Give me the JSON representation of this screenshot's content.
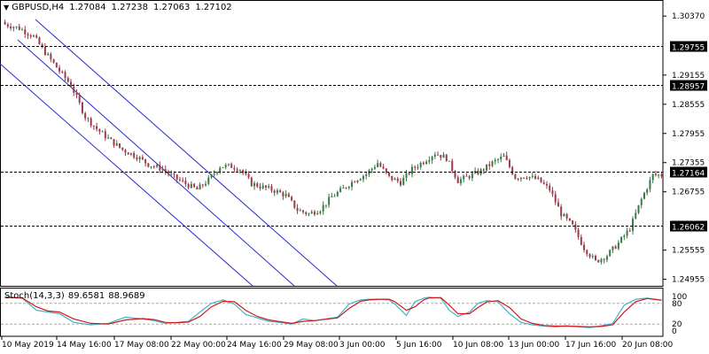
{
  "header": {
    "symbol": "GBPUSD,H4",
    "open": "1.27084",
    "high": "1.27238",
    "low": "1.27063",
    "close": "1.27102"
  },
  "stochastic": {
    "label": "Stoch(14,3,3)",
    "main": "89.6581",
    "signal": "88.9689",
    "levels": [
      "100",
      "80",
      "20",
      "0"
    ]
  },
  "colors": {
    "bull": "#3a7a45",
    "bear": "#9c3b4c",
    "channel": "#2a2acc",
    "stoch_main": "#40b4c8",
    "stoch_signal": "#d01818"
  },
  "chart_data": [
    {
      "type": "candlestick",
      "title": "GBPUSD,H4",
      "y_ticks": [
        "1.30370",
        "1.29155",
        "1.28555",
        "1.27955",
        "1.27355",
        "1.26755",
        "1.25555",
        "1.24955"
      ],
      "horizontal_levels": [
        "1.29755",
        "1.28957",
        "1.27164",
        "1.26062"
      ],
      "x_ticks": [
        "10 May 2019",
        "14 May 16:00",
        "17 May 08:00",
        "22 May 00:00",
        "24 May 16:00",
        "29 May 08:00",
        "3 Jun 00:00",
        "5 Jun 16:00",
        "10 Jun 08:00",
        "13 Jun 00:00",
        "17 Jun 16:00",
        "20 Jun 08:00"
      ],
      "ylim": [
        1.2482,
        1.307
      ],
      "grid": false,
      "trend_channel": "descending, 3 parallel lines",
      "close_path": [
        [
          0,
          1.302
        ],
        [
          5,
          1.3012
        ],
        [
          10,
          1.2995
        ],
        [
          14,
          1.2962
        ],
        [
          19,
          1.2924
        ],
        [
          23,
          1.2895
        ],
        [
          28,
          1.283
        ],
        [
          32,
          1.2805
        ],
        [
          37,
          1.278
        ],
        [
          41,
          1.2762
        ],
        [
          46,
          1.2748
        ],
        [
          50,
          1.2732
        ],
        [
          55,
          1.2722
        ],
        [
          59,
          1.2705
        ],
        [
          63,
          1.2692
        ],
        [
          67,
          1.268
        ],
        [
          71,
          1.27
        ],
        [
          75,
          1.2728
        ],
        [
          79,
          1.2728
        ],
        [
          82,
          1.2722
        ],
        [
          86,
          1.2692
        ],
        [
          90,
          1.2685
        ],
        [
          94,
          1.2678
        ],
        [
          98,
          1.2668
        ],
        [
          102,
          1.2638
        ],
        [
          106,
          1.263
        ],
        [
          110,
          1.264
        ],
        [
          114,
          1.2665
        ],
        [
          118,
          1.2682
        ],
        [
          122,
          1.27
        ],
        [
          126,
          1.2712
        ],
        [
          130,
          1.2735
        ],
        [
          134,
          1.2705
        ],
        [
          138,
          1.2695
        ],
        [
          142,
          1.2722
        ],
        [
          146,
          1.2738
        ],
        [
          150,
          1.2755
        ],
        [
          154,
          1.2745
        ],
        [
          158,
          1.2698
        ],
        [
          162,
          1.2708
        ],
        [
          166,
          1.2718
        ],
        [
          170,
          1.2735
        ],
        [
          174,
          1.2748
        ],
        [
          178,
          1.2705
        ],
        [
          182,
          1.2708
        ],
        [
          186,
          1.27
        ],
        [
          190,
          1.268
        ],
        [
          194,
          1.263
        ],
        [
          198,
          1.2605
        ],
        [
          202,
          1.256
        ],
        [
          206,
          1.2532
        ],
        [
          210,
          1.2545
        ],
        [
          214,
          1.257
        ],
        [
          218,
          1.26
        ],
        [
          222,
          1.266
        ],
        [
          226,
          1.271
        ],
        [
          229,
          1.271
        ]
      ]
    },
    {
      "type": "line",
      "title": "Stoch(14,3,3)",
      "ylim": [
        0,
        100
      ],
      "levels": [
        100,
        80,
        20,
        0
      ],
      "series": [
        {
          "name": "Main",
          "values": [
            [
              0,
              100
            ],
            [
              6,
              95
            ],
            [
              11,
              60
            ],
            [
              15,
              55
            ],
            [
              19,
              50
            ],
            [
              24,
              25
            ],
            [
              30,
              18
            ],
            [
              36,
              22
            ],
            [
              42,
              40
            ],
            [
              48,
              35
            ],
            [
              52,
              30
            ],
            [
              56,
              22
            ],
            [
              60,
              25
            ],
            [
              64,
              28
            ],
            [
              68,
              55
            ],
            [
              72,
              80
            ],
            [
              76,
              90
            ],
            [
              80,
              78
            ],
            [
              84,
              48
            ],
            [
              88,
              38
            ],
            [
              92,
              28
            ],
            [
              96,
              25
            ],
            [
              100,
              20
            ],
            [
              104,
              35
            ],
            [
              108,
              30
            ],
            [
              112,
              35
            ],
            [
              116,
              40
            ],
            [
              120,
              78
            ],
            [
              124,
              90
            ],
            [
              127,
              92
            ],
            [
              131,
              92
            ],
            [
              134,
              90
            ],
            [
              136,
              78
            ],
            [
              140,
              45
            ],
            [
              143,
              85
            ],
            [
              146,
              95
            ],
            [
              148,
              98
            ],
            [
              152,
              95
            ],
            [
              155,
              60
            ],
            [
              158,
              42
            ],
            [
              162,
              55
            ],
            [
              165,
              80
            ],
            [
              168,
              88
            ],
            [
              172,
              85
            ],
            [
              176,
              50
            ],
            [
              180,
              25
            ],
            [
              184,
              18
            ],
            [
              188,
              14
            ],
            [
              192,
              12
            ],
            [
              196,
              15
            ],
            [
              200,
              12
            ],
            [
              204,
              10
            ],
            [
              208,
              15
            ],
            [
              212,
              22
            ],
            [
              216,
              75
            ],
            [
              220,
              92
            ],
            [
              224,
              95
            ],
            [
              229,
              89.6581
            ]
          ]
        },
        {
          "name": "Signal",
          "values": [
            [
              0,
              97
            ],
            [
              6,
              96
            ],
            [
              11,
              70
            ],
            [
              15,
              58
            ],
            [
              19,
              55
            ],
            [
              24,
              35
            ],
            [
              30,
              22
            ],
            [
              36,
              20
            ],
            [
              42,
              32
            ],
            [
              48,
              36
            ],
            [
              52,
              33
            ],
            [
              56,
              25
            ],
            [
              60,
              24
            ],
            [
              64,
              26
            ],
            [
              68,
              42
            ],
            [
              72,
              70
            ],
            [
              76,
              86
            ],
            [
              80,
              85
            ],
            [
              84,
              60
            ],
            [
              88,
              42
            ],
            [
              92,
              32
            ],
            [
              96,
              27
            ],
            [
              100,
              22
            ],
            [
              104,
              28
            ],
            [
              108,
              30
            ],
            [
              112,
              34
            ],
            [
              116,
              38
            ],
            [
              120,
              65
            ],
            [
              124,
              86
            ],
            [
              127,
              90
            ],
            [
              131,
              92
            ],
            [
              134,
              92
            ],
            [
              136,
              85
            ],
            [
              140,
              60
            ],
            [
              143,
              70
            ],
            [
              146,
              90
            ],
            [
              148,
              96
            ],
            [
              152,
              97
            ],
            [
              155,
              75
            ],
            [
              158,
              50
            ],
            [
              162,
              50
            ],
            [
              165,
              68
            ],
            [
              168,
              84
            ],
            [
              172,
              88
            ],
            [
              176,
              68
            ],
            [
              180,
              35
            ],
            [
              184,
              22
            ],
            [
              188,
              16
            ],
            [
              192,
              14
            ],
            [
              196,
              14
            ],
            [
              200,
              13
            ],
            [
              204,
              12
            ],
            [
              208,
              13
            ],
            [
              212,
              18
            ],
            [
              216,
              55
            ],
            [
              220,
              85
            ],
            [
              224,
              94
            ],
            [
              229,
              88.9689
            ]
          ]
        }
      ]
    }
  ]
}
